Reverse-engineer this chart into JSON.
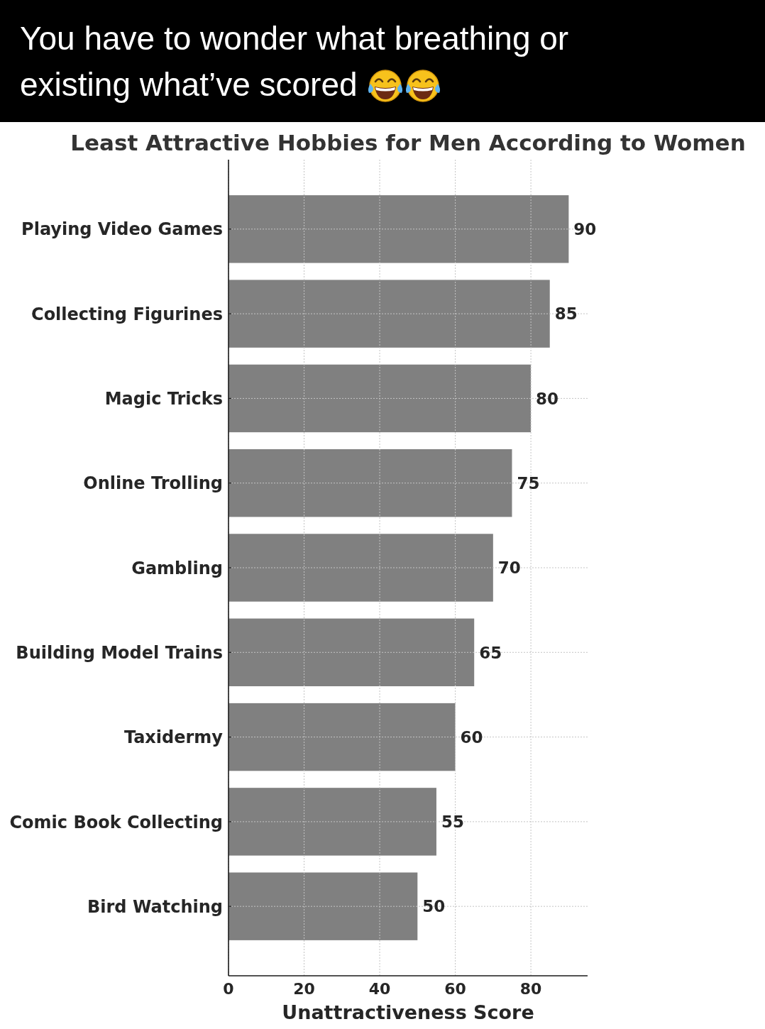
{
  "chart_data": {
    "type": "bar",
    "orientation": "horizontal",
    "title": "Least Attractive Hobbies for Men According to Women",
    "xlabel": "Unattractiveness Score",
    "annotations": [
      "You have to wonder what breathing or existing what’ve scored"
    ],
    "categories": [
      "Playing Video Games",
      "Collecting Figurines",
      "Magic Tricks",
      "Online Trolling",
      "Gambling",
      "Building Model Trains",
      "Taxidermy",
      "Comic Book Collecting",
      "Bird Watching"
    ],
    "values": [
      90,
      85,
      80,
      75,
      70,
      65,
      60,
      55,
      50
    ],
    "color": "#808080",
    "xlim": [
      0,
      95
    ],
    "xticks": [
      0,
      20,
      40,
      60,
      80
    ],
    "grid": true,
    "data_labels": true
  }
}
